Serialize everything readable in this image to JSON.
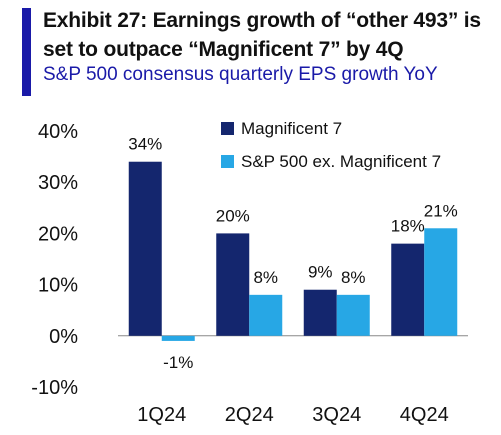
{
  "header": {
    "title": "Exhibit 27: Earnings growth of “other 493” is set to outpace “Magnificent 7” by 4Q",
    "subtitle": "S&P 500 consensus quarterly EPS growth YoY"
  },
  "colors": {
    "accent": "#1a1aa8",
    "series_dark": "#14266e",
    "series_light": "#27a7e5",
    "axis": "#888888"
  },
  "chart_data": {
    "type": "bar",
    "categories": [
      "1Q24",
      "2Q24",
      "3Q24",
      "4Q24"
    ],
    "series": [
      {
        "name": "Magnificent 7",
        "values": [
          34,
          20,
          9,
          18
        ],
        "labels": [
          "34%",
          "20%",
          "9%",
          "18%"
        ]
      },
      {
        "name": "S&P 500 ex. Magnificent 7",
        "values": [
          -1,
          8,
          8,
          21
        ],
        "labels": [
          "-1%",
          "8%",
          "8%",
          "21%"
        ]
      }
    ],
    "ylim": [
      -10,
      40
    ],
    "yticks": [
      40,
      30,
      20,
      10,
      0,
      -10
    ],
    "ytick_labels": [
      "40%",
      "30%",
      "20%",
      "10%",
      "0%",
      "-10%"
    ],
    "legend_position": "top-right",
    "grid": false
  }
}
